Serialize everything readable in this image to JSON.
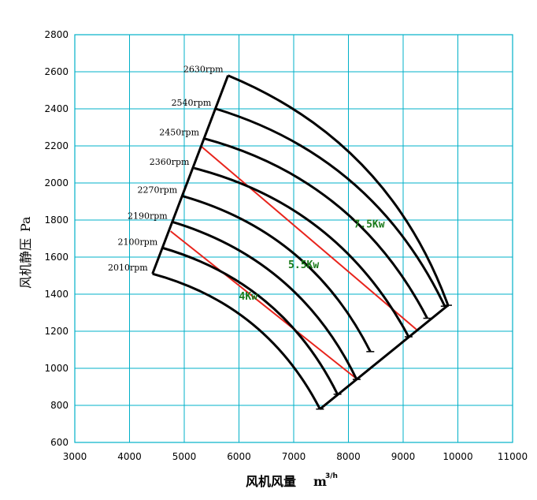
{
  "chart_data": {
    "type": "line",
    "title": "",
    "xlabel": "风机风量",
    "xlabel_unit": "m",
    "xlabel_unit_sup": "3/h",
    "ylabel": "风机静压",
    "ylabel_unit": "Pa",
    "xlim": [
      3000,
      11000
    ],
    "ylim": [
      600,
      2800
    ],
    "x_ticks": [
      3000,
      4000,
      5000,
      6000,
      7000,
      8000,
      9000,
      10000,
      11000
    ],
    "y_ticks": [
      600,
      800,
      1000,
      1200,
      1400,
      1600,
      1800,
      2000,
      2200,
      2400,
      2600,
      2800
    ],
    "grid": true,
    "grid_color": "#00b0c8",
    "curve_color": "#000000",
    "power_line_color": "#e8241c",
    "power_label_color": "#1a7a1a",
    "series": [
      {
        "name": "2010rpm",
        "start": [
          4420,
          1510
        ],
        "end": [
          7480,
          780
        ]
      },
      {
        "name": "2100rpm",
        "start": [
          4600,
          1650
        ],
        "end": [
          7800,
          860
        ]
      },
      {
        "name": "2190rpm",
        "start": [
          4780,
          1790
        ],
        "end": [
          8150,
          940
        ]
      },
      {
        "name": "2270rpm",
        "start": [
          4960,
          1930
        ],
        "end": [
          8400,
          1090
        ]
      },
      {
        "name": "2360rpm",
        "start": [
          5180,
          2080
        ],
        "end": [
          9100,
          1170
        ]
      },
      {
        "name": "2450rpm",
        "start": [
          5360,
          2240
        ],
        "end": [
          9440,
          1270
        ]
      },
      {
        "name": "2540rpm",
        "start": [
          5580,
          2400
        ],
        "end": [
          9760,
          1335
        ]
      },
      {
        "name": "2630rpm",
        "start": [
          5800,
          2580
        ],
        "end": [
          9820,
          1340
        ]
      }
    ],
    "power_lines": [
      {
        "from": [
          4750,
          1740
        ],
        "to": [
          8120,
          950
        ]
      },
      {
        "from": [
          5300,
          2200
        ],
        "to": [
          9240,
          1210
        ]
      }
    ],
    "power_labels": [
      {
        "text": "4Kw",
        "x": 6000,
        "y": 1370
      },
      {
        "text": "5.5Kw",
        "x": 6900,
        "y": 1540
      },
      {
        "text": "7.5Kw",
        "x": 8100,
        "y": 1760
      }
    ]
  }
}
